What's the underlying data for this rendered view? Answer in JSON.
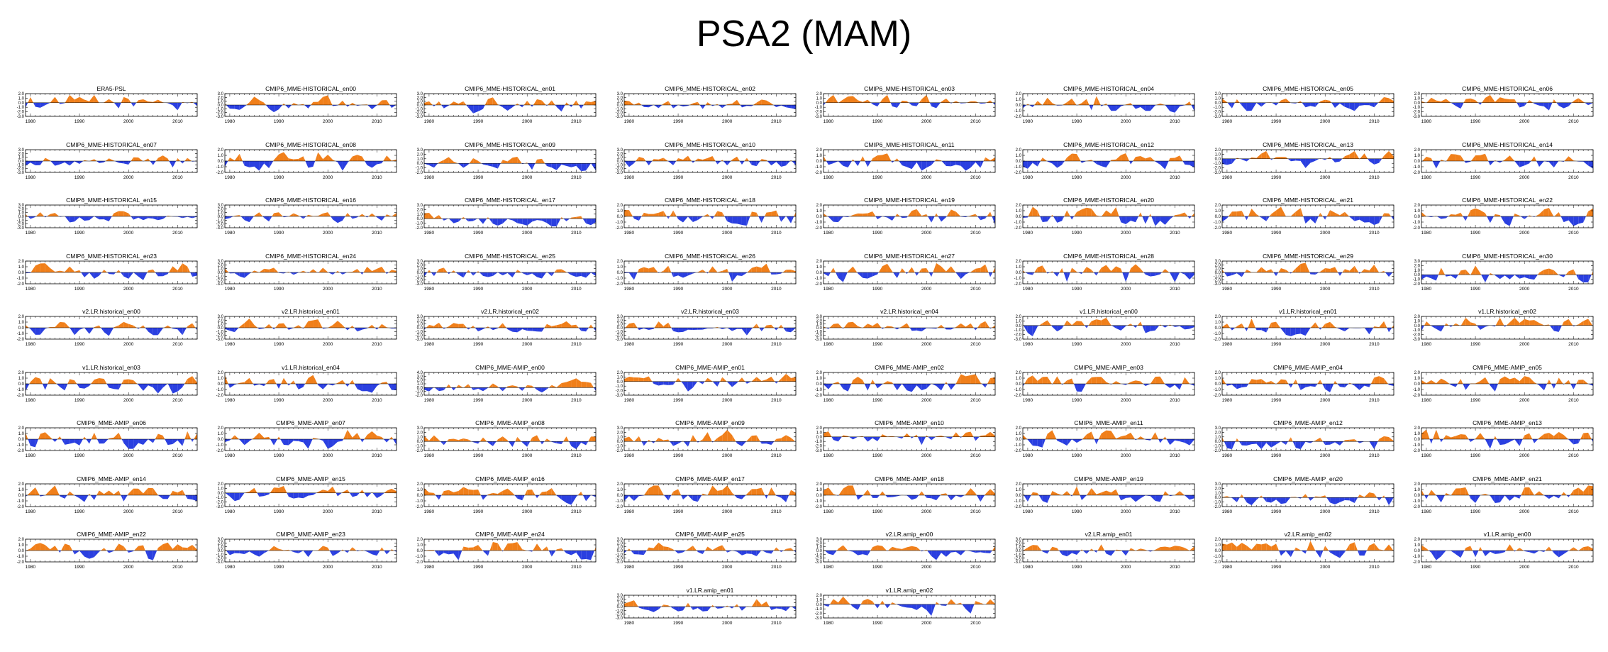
{
  "title": "PSA2 (MAM)",
  "colors": {
    "positive": "#f07f1a",
    "negative": "#2a3fe0",
    "axis": "#000000",
    "zero": "#000000"
  },
  "chart_data": {
    "type": "area",
    "x_range": [
      1979,
      2014
    ],
    "x_ticks": [
      1980,
      1990,
      2000,
      2010
    ],
    "x_tick_labels": [
      "1980",
      "1990",
      "2000",
      "2010"
    ],
    "shading": "orange above zero, blue below zero",
    "panels": [
      {
        "title": "ERA5-PSL",
        "y_ticks": [
          "2.0",
          "1.0",
          "0.0",
          "-1.0",
          "-2.0",
          "-3.0"
        ],
        "ylim": [
          -3,
          2
        ]
      },
      {
        "title": "CMIP6_MME-HISTORICAL_en00",
        "y_ticks": [
          "3.0",
          "2.0",
          "1.0",
          "0.0",
          "-1.0",
          "-2.0",
          "-3.0"
        ],
        "ylim": [
          -3,
          3
        ]
      },
      {
        "title": "CMIP6_MME-HISTORICAL_en01",
        "y_ticks": [
          "3.0",
          "2.0",
          "1.0",
          "0.0",
          "-1.0",
          "-2.0",
          "-3.0"
        ],
        "ylim": [
          -3,
          3
        ]
      },
      {
        "title": "CMIP6_MME-HISTORICAL_en02",
        "y_ticks": [
          "3.0",
          "2.0",
          "1.0",
          "0.0",
          "-1.0",
          "-2.0",
          "-3.0"
        ],
        "ylim": [
          -3,
          3
        ]
      },
      {
        "title": "CMIP6_MME-HISTORICAL_en03",
        "y_ticks": [
          "2.0",
          "1.0",
          "0.0",
          "-1.0",
          "-2.0",
          "-3.0"
        ],
        "ylim": [
          -3,
          2
        ]
      },
      {
        "title": "CMIP6_MME-HISTORICAL_en04",
        "y_ticks": [
          "2.0",
          "1.0",
          "0.0",
          "-1.0",
          "-2.0"
        ],
        "ylim": [
          -2,
          2
        ]
      },
      {
        "title": "CMIP6_MME-HISTORICAL_en05",
        "y_ticks": [
          "2.0",
          "1.0",
          "0.0",
          "-1.0",
          "-2.0",
          "-3.0"
        ],
        "ylim": [
          -3,
          2
        ]
      },
      {
        "title": "CMIP6_MME-HISTORICAL_en06",
        "y_ticks": [
          "2.0",
          "1.0",
          "0.0",
          "-1.0",
          "-2.0",
          "-3.0"
        ],
        "ylim": [
          -3,
          2
        ]
      },
      {
        "title": "CMIP6_MME-HISTORICAL_en07",
        "y_ticks": [
          "3.0",
          "2.0",
          "1.0",
          "0.0",
          "-1.0",
          "-2.0",
          "-3.0"
        ],
        "ylim": [
          -3,
          3
        ]
      },
      {
        "title": "CMIP6_MME-HISTORICAL_en08",
        "y_ticks": [
          "2.0",
          "1.0",
          "0.0",
          "-1.0",
          "-2.0"
        ],
        "ylim": [
          -2,
          2
        ]
      },
      {
        "title": "CMIP6_MME-HISTORICAL_en09",
        "y_ticks": [
          "3.0",
          "2.0",
          "1.0",
          "0.0",
          "-1.0",
          "-2.0"
        ],
        "ylim": [
          -2,
          3
        ]
      },
      {
        "title": "CMIP6_MME-HISTORICAL_en10",
        "y_ticks": [
          "3.0",
          "2.0",
          "1.0",
          "0.0",
          "-1.0",
          "-2.0",
          "-3.0"
        ],
        "ylim": [
          -3,
          3
        ]
      },
      {
        "title": "CMIP6_MME-HISTORICAL_en11",
        "y_ticks": [
          "2.0",
          "1.0",
          "0.0",
          "-1.0",
          "-2.0"
        ],
        "ylim": [
          -2,
          2
        ]
      },
      {
        "title": "CMIP6_MME-HISTORICAL_en12",
        "y_ticks": [
          "2.0",
          "1.0",
          "0.0",
          "-1.0",
          "-2.0"
        ],
        "ylim": [
          -2,
          2
        ]
      },
      {
        "title": "CMIP6_MME-HISTORICAL_en13",
        "y_ticks": [
          "2.0",
          "1.0",
          "0.0",
          "-1.0",
          "-2.0",
          "-3.0"
        ],
        "ylim": [
          -3,
          2
        ]
      },
      {
        "title": "CMIP6_MME-HISTORICAL_en14",
        "y_ticks": [
          "2.0",
          "1.0",
          "0.0",
          "-1.0",
          "-2.0"
        ],
        "ylim": [
          -2,
          2
        ]
      },
      {
        "title": "CMIP6_MME-HISTORICAL_en15",
        "y_ticks": [
          "3.0",
          "2.0",
          "1.0",
          "0.0",
          "-1.0",
          "-2.0",
          "-3.0"
        ],
        "ylim": [
          -3,
          3
        ]
      },
      {
        "title": "CMIP6_MME-HISTORICAL_en16",
        "y_ticks": [
          "3.0",
          "2.0",
          "1.0",
          "0.0",
          "-1.0",
          "-2.0",
          "-3.0"
        ],
        "ylim": [
          -3,
          3
        ]
      },
      {
        "title": "CMIP6_MME-HISTORICAL_en17",
        "y_ticks": [
          "3.0",
          "2.0",
          "1.0",
          "0.0",
          "-1.0",
          "-2.0"
        ],
        "ylim": [
          -2,
          3
        ]
      },
      {
        "title": "CMIP6_MME-HISTORICAL_en18",
        "y_ticks": [
          "2.0",
          "1.0",
          "0.0",
          "-1.0",
          "-2.0"
        ],
        "ylim": [
          -2,
          2
        ]
      },
      {
        "title": "CMIP6_MME-HISTORICAL_en19",
        "y_ticks": [
          "2.0",
          "1.0",
          "0.0",
          "-1.0",
          "-2.0"
        ],
        "ylim": [
          -2,
          2
        ]
      },
      {
        "title": "CMIP6_MME-HISTORICAL_en20",
        "y_ticks": [
          "2.0",
          "1.0",
          "0.0",
          "-1.0",
          "-2.0"
        ],
        "ylim": [
          -2,
          2
        ]
      },
      {
        "title": "CMIP6_MME-HISTORICAL_en21",
        "y_ticks": [
          "2.0",
          "1.0",
          "0.0",
          "-1.0",
          "-2.0"
        ],
        "ylim": [
          -2,
          2
        ]
      },
      {
        "title": "CMIP6_MME-HISTORICAL_en22",
        "y_ticks": [
          "2.0",
          "1.0",
          "0.0",
          "-1.0",
          "-2.0"
        ],
        "ylim": [
          -2,
          2
        ]
      },
      {
        "title": "CMIP6_MME-HISTORICAL_en23",
        "y_ticks": [
          "2.0",
          "1.0",
          "0.0",
          "-1.0",
          "-2.0"
        ],
        "ylim": [
          -2,
          2
        ]
      },
      {
        "title": "CMIP6_MME-HISTORICAL_en24",
        "y_ticks": [
          "3.0",
          "2.0",
          "1.0",
          "0.0",
          "-1.0",
          "-2.0",
          "-3.0"
        ],
        "ylim": [
          -3,
          3
        ]
      },
      {
        "title": "CMIP6_MME-HISTORICAL_en25",
        "y_ticks": [
          "3.0",
          "2.0",
          "1.0",
          "0.0",
          "-1.0",
          "-2.0",
          "-3.0"
        ],
        "ylim": [
          -3,
          3
        ]
      },
      {
        "title": "CMIP6_MME-HISTORICAL_en26",
        "y_ticks": [
          "2.0",
          "1.0",
          "0.0",
          "-1.0",
          "-2.0"
        ],
        "ylim": [
          -2,
          2
        ]
      },
      {
        "title": "CMIP6_MME-HISTORICAL_en27",
        "y_ticks": [
          "2.0",
          "1.0",
          "0.0",
          "-1.0",
          "-2.0"
        ],
        "ylim": [
          -2,
          2
        ]
      },
      {
        "title": "CMIP6_MME-HISTORICAL_en28",
        "y_ticks": [
          "2.0",
          "1.0",
          "0.0",
          "-1.0",
          "-2.0"
        ],
        "ylim": [
          -2,
          2
        ]
      },
      {
        "title": "CMIP6_MME-HISTORICAL_en29",
        "y_ticks": [
          "3.0",
          "2.0",
          "1.0",
          "0.0",
          "-1.0",
          "-2.0",
          "-3.0"
        ],
        "ylim": [
          -3,
          3
        ]
      },
      {
        "title": "CMIP6_MME-HISTORICAL_en30",
        "y_ticks": [
          "3.0",
          "2.0",
          "1.0",
          "0.0",
          "-1.0",
          "-2.0"
        ],
        "ylim": [
          -2,
          3
        ]
      },
      {
        "title": "v2.LR.historical_en00",
        "y_ticks": [
          "2.0",
          "1.0",
          "0.0",
          "-1.0",
          "-2.0"
        ],
        "ylim": [
          -2,
          2
        ]
      },
      {
        "title": "v2.LR.historical_en01",
        "y_ticks": [
          "3.0",
          "2.0",
          "1.0",
          "0.0",
          "-1.0",
          "-2.0",
          "-3.0"
        ],
        "ylim": [
          -3,
          3
        ]
      },
      {
        "title": "v2.LR.historical_en02",
        "y_ticks": [
          "3.0",
          "2.0",
          "1.0",
          "0.0",
          "-1.0",
          "-2.0",
          "-3.0"
        ],
        "ylim": [
          -3,
          3
        ]
      },
      {
        "title": "v2.LR.historical_en03",
        "y_ticks": [
          "3.0",
          "2.0",
          "1.0",
          "0.0",
          "-1.0",
          "-2.0",
          "-3.0"
        ],
        "ylim": [
          -3,
          3
        ]
      },
      {
        "title": "v2.LR.historical_en04",
        "y_ticks": [
          "3.0",
          "2.0",
          "1.0",
          "0.0",
          "-1.0",
          "-2.0",
          "-3.0"
        ],
        "ylim": [
          -3,
          3
        ]
      },
      {
        "title": "v1.LR.historical_en00",
        "y_ticks": [
          "2.0",
          "1.0",
          "0.0",
          "-1.0",
          "-2.0",
          "-3.0"
        ],
        "ylim": [
          -3,
          2
        ]
      },
      {
        "title": "v1.LR.historical_en01",
        "y_ticks": [
          "2.0",
          "1.0",
          "0.0",
          "-1.0",
          "-2.0"
        ],
        "ylim": [
          -2,
          2
        ]
      },
      {
        "title": "v1.LR.historical_en02",
        "y_ticks": [
          "2.0",
          "1.0",
          "0.0",
          "-1.0",
          "-2.0",
          "-3.0"
        ],
        "ylim": [
          -3,
          2
        ]
      },
      {
        "title": "v1.LR.historical_en03",
        "y_ticks": [
          "2.0",
          "1.0",
          "0.0",
          "-1.0",
          "-2.0"
        ],
        "ylim": [
          -2,
          2
        ]
      },
      {
        "title": "v1.LR.historical_en04",
        "y_ticks": [
          "2.0",
          "1.0",
          "0.0",
          "-1.0",
          "-2.0"
        ],
        "ylim": [
          -2,
          2
        ]
      },
      {
        "title": "CMIP6_MME-AMIP_en00",
        "y_ticks": [
          "4.0",
          "3.0",
          "2.0",
          "1.0",
          "0.0",
          "-1.0",
          "-2.0"
        ],
        "ylim": [
          -2,
          4
        ]
      },
      {
        "title": "CMIP6_MME-AMIP_en01",
        "y_ticks": [
          "2.0",
          "1.0",
          "0.0",
          "-1.0",
          "-2.0",
          "-3.0"
        ],
        "ylim": [
          -3,
          2
        ]
      },
      {
        "title": "CMIP6_MME-AMIP_en02",
        "y_ticks": [
          "2.0",
          "1.0",
          "0.0",
          "-1.0",
          "-2.0"
        ],
        "ylim": [
          -2,
          2
        ]
      },
      {
        "title": "CMIP6_MME-AMIP_en03",
        "y_ticks": [
          "2.0",
          "1.0",
          "0.0",
          "-1.0",
          "-2.0"
        ],
        "ylim": [
          -2,
          2
        ]
      },
      {
        "title": "CMIP6_MME-AMIP_en04",
        "y_ticks": [
          "2.0",
          "1.0",
          "0.0",
          "-1.0",
          "-2.0"
        ],
        "ylim": [
          -2,
          2
        ]
      },
      {
        "title": "CMIP6_MME-AMIP_en05",
        "y_ticks": [
          "2.0",
          "1.0",
          "0.0",
          "-1.0",
          "-2.0"
        ],
        "ylim": [
          -2,
          2
        ]
      },
      {
        "title": "CMIP6_MME-AMIP_en06",
        "y_ticks": [
          "2.0",
          "1.0",
          "0.0",
          "-1.0",
          "-2.0"
        ],
        "ylim": [
          -2,
          2
        ]
      },
      {
        "title": "CMIP6_MME-AMIP_en07",
        "y_ticks": [
          "2.0",
          "1.0",
          "0.0",
          "-1.0",
          "-2.0"
        ],
        "ylim": [
          -2,
          2
        ]
      },
      {
        "title": "CMIP6_MME-AMIP_en08",
        "y_ticks": [
          "3.0",
          "2.0",
          "1.0",
          "0.0",
          "-1.0",
          "-2.0"
        ],
        "ylim": [
          -2,
          3
        ]
      },
      {
        "title": "CMIP6_MME-AMIP_en09",
        "y_ticks": [
          "3.0",
          "2.0",
          "1.0",
          "0.0",
          "-1.0",
          "-2.0"
        ],
        "ylim": [
          -2,
          3
        ]
      },
      {
        "title": "CMIP6_MME-AMIP_en10",
        "y_ticks": [
          "2.0",
          "1.0",
          "0.0",
          "-1.0",
          "-2.0",
          "-3.0"
        ],
        "ylim": [
          -3,
          2
        ]
      },
      {
        "title": "CMIP6_MME-AMIP_en11",
        "y_ticks": [
          "2.0",
          "1.0",
          "0.0",
          "-1.0",
          "-2.0"
        ],
        "ylim": [
          -2,
          2
        ]
      },
      {
        "title": "CMIP6_MME-AMIP_en12",
        "y_ticks": [
          "3.0",
          "2.0",
          "1.0",
          "0.0",
          "-1.0",
          "-2.0"
        ],
        "ylim": [
          -2,
          3
        ]
      },
      {
        "title": "CMIP6_MME-AMIP_en13",
        "y_ticks": [
          "2.0",
          "1.0",
          "0.0",
          "-1.0",
          "-2.0"
        ],
        "ylim": [
          -2,
          2
        ]
      },
      {
        "title": "CMIP6_MME-AMIP_en14",
        "y_ticks": [
          "2.0",
          "1.0",
          "0.0",
          "-1.0",
          "-2.0"
        ],
        "ylim": [
          -2,
          2
        ]
      },
      {
        "title": "CMIP6_MME-AMIP_en15",
        "y_ticks": [
          "2.0",
          "1.0",
          "0.0",
          "-1.0",
          "-2.0",
          "-3.0"
        ],
        "ylim": [
          -3,
          2
        ]
      },
      {
        "title": "CMIP6_MME-AMIP_en16",
        "y_ticks": [
          "2.0",
          "1.0",
          "0.0",
          "-1.0",
          "-2.0"
        ],
        "ylim": [
          -2,
          2
        ]
      },
      {
        "title": "CMIP6_MME-AMIP_en17",
        "y_ticks": [
          "2.0",
          "1.0",
          "0.0",
          "-1.0",
          "-2.0"
        ],
        "ylim": [
          -2,
          2
        ]
      },
      {
        "title": "CMIP6_MME-AMIP_en18",
        "y_ticks": [
          "2.0",
          "1.0",
          "0.0",
          "-1.0",
          "-2.0"
        ],
        "ylim": [
          -2,
          2
        ]
      },
      {
        "title": "CMIP6_MME-AMIP_en19",
        "y_ticks": [
          "2.0",
          "1.0",
          "0.0",
          "-1.0",
          "-2.0"
        ],
        "ylim": [
          -2,
          2
        ]
      },
      {
        "title": "CMIP6_MME-AMIP_en20",
        "y_ticks": [
          "3.0",
          "2.0",
          "1.0",
          "0.0",
          "-1.0",
          "-2.0"
        ],
        "ylim": [
          -2,
          3
        ]
      },
      {
        "title": "CMIP6_MME-AMIP_en21",
        "y_ticks": [
          "2.0",
          "1.0",
          "0.0",
          "-1.0",
          "-2.0"
        ],
        "ylim": [
          -2,
          2
        ]
      },
      {
        "title": "CMIP6_MME-AMIP_en22",
        "y_ticks": [
          "2.0",
          "1.0",
          "0.0",
          "-1.0",
          "-2.0"
        ],
        "ylim": [
          -2,
          2
        ]
      },
      {
        "title": "CMIP6_MME-AMIP_en23",
        "y_ticks": [
          "3.0",
          "2.0",
          "1.0",
          "0.0",
          "-1.0",
          "-2.0",
          "-3.0"
        ],
        "ylim": [
          -3,
          3
        ]
      },
      {
        "title": "CMIP6_MME-AMIP_en24",
        "y_ticks": [
          "2.0",
          "1.0",
          "0.0",
          "-1.0",
          "-2.0"
        ],
        "ylim": [
          -2,
          2
        ]
      },
      {
        "title": "CMIP6_MME-AMIP_en25",
        "y_ticks": [
          "3.0",
          "2.0",
          "1.0",
          "0.0",
          "-1.0",
          "-2.0",
          "-3.0"
        ],
        "ylim": [
          -3,
          3
        ]
      },
      {
        "title": "v2.LR.amip_en00",
        "y_ticks": [
          "3.0",
          "2.0",
          "1.0",
          "0.0",
          "-1.0",
          "-2.0",
          "-3.0"
        ],
        "ylim": [
          -3,
          3
        ]
      },
      {
        "title": "v2.LR.amip_en01",
        "y_ticks": [
          "3.0",
          "2.0",
          "1.0",
          "0.0",
          "-1.0",
          "-2.0",
          "-3.0"
        ],
        "ylim": [
          -3,
          3
        ]
      },
      {
        "title": "v2.LR.amip_en02",
        "y_ticks": [
          "2.0",
          "1.0",
          "0.0",
          "-1.0",
          "-2.0"
        ],
        "ylim": [
          -2,
          2
        ]
      },
      {
        "title": "v1.LR.amip_en00",
        "y_ticks": [
          "2.0",
          "1.0",
          "0.0",
          "-1.0",
          "-2.0"
        ],
        "ylim": [
          -2,
          2
        ]
      },
      {
        "title": "v1.LR.amip_en01",
        "y_ticks": [
          "3.0",
          "2.0",
          "1.0",
          "0.0",
          "-1.0",
          "-2.0",
          "-3.0"
        ],
        "ylim": [
          -3,
          3
        ]
      },
      {
        "title": "v1.LR.amip_en02",
        "y_ticks": [
          "2.0",
          "1.0",
          "0.0",
          "-1.0",
          "-2.0",
          "-3.0"
        ],
        "ylim": [
          -3,
          2
        ]
      }
    ]
  }
}
